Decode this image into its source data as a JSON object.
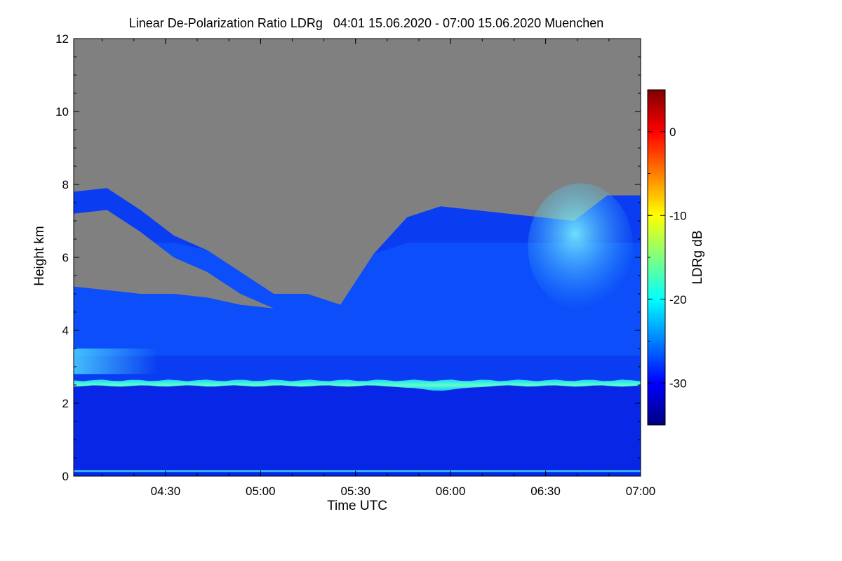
{
  "chart_data": {
    "type": "heatmap",
    "title": "Linear De-Polarization Ratio LDRg   04:01 15.06.2020 - 07:00 15.06.2020 Muenchen",
    "xlabel": "Time UTC",
    "ylabel": "Height km",
    "xlim": [
      "04:01",
      "07:00"
    ],
    "ylim": [
      0,
      12
    ],
    "x_ticks": [
      "04:30",
      "05:00",
      "05:30",
      "06:00",
      "06:30",
      "07:00"
    ],
    "y_ticks": [
      0,
      2,
      4,
      6,
      8,
      10,
      12
    ],
    "colorbar": {
      "label": "LDRg dB",
      "range": [
        -35,
        5
      ],
      "ticks": [
        0,
        -10,
        -20,
        -30
      ],
      "colormap": [
        "#00007f",
        "#0000ff",
        "#007fff",
        "#00ffff",
        "#7fff7f",
        "#ffff00",
        "#ff7f00",
        "#ff0000",
        "#7f0000"
      ],
      "no_data_color": "#808080"
    },
    "features": {
      "signal_top_km": [
        7.8,
        7.9,
        7.3,
        6.6,
        6.2,
        5.6,
        5.0,
        5.0,
        4.7,
        6.1,
        7.1,
        7.4,
        7.3,
        7.2,
        7.1,
        7.0,
        7.7,
        7.7
      ],
      "gap_bottom_km": [
        5.2,
        5.1,
        5.0,
        5.0,
        4.9,
        4.7,
        4.6,
        4.5,
        4.5,
        6.0,
        7.1,
        7.4,
        7.3,
        7.2,
        7.1,
        7.0,
        7.7,
        7.7
      ],
      "layer_at_km": 2.55,
      "ground_line_km": 0.15
    }
  }
}
